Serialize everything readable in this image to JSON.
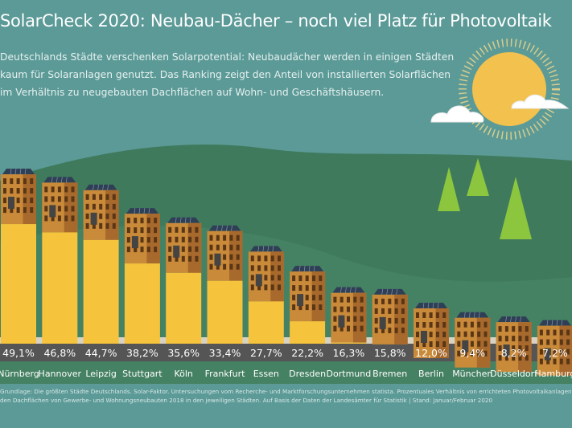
{
  "title": "SolarCheck 2020: Neubau-Dächer – noch viel Platz für Photovoltaik",
  "intro": [
    "Deutschlands Städte verschenken Solarpotential: Neubaudächer werden in einigen Städten",
    "kaum für Solaranlagen genutzt. Das Ranking zeigt den Anteil von installierten Solarflächen",
    "im Verhältnis zu neugebauten Dachflächen auf Wohn- und Geschäftshäusern."
  ],
  "footer": [
    "Grundlage: Die größten Städte Deutschlands. Solar-Faktor. Untersuchungen vom Recherche- und Marktforschungsunternehmen statista. Prozentuales Verhältnis von errichteten Photovoltaikanlagen zu",
    "den Dachflächen von Gewerbe- und Wohnungsneubauten 2018 in den jeweiligen Städten. Auf Basis der Daten der Landesämter für Statistik | Stand: Januar/Februar 2020"
  ],
  "colors": {
    "background": "#5b9a97",
    "hill": "#3f7a5c",
    "tree": "#8cc63f",
    "sun": "#f2c14e",
    "bar": "#f5c33c",
    "building": "#c98a3a",
    "building_side": "#a8692c",
    "label_band": "#555555",
    "baseline_band": "#d8d2c4"
  },
  "chart_data": {
    "type": "bar",
    "categories": [
      "Nürnberg",
      "Hannover",
      "Leipzig",
      "Stuttgart",
      "Köln",
      "Frankfurt",
      "Essen",
      "Dresden",
      "Dortmund",
      "Bremen",
      "Berlin",
      "München",
      "Düsseldorf",
      "Hamburg"
    ],
    "values": [
      49.1,
      46.8,
      44.7,
      38.2,
      35.6,
      33.4,
      27.7,
      22.2,
      16.3,
      15.8,
      12.0,
      9.4,
      8.2,
      7.2
    ],
    "value_labels": [
      "49,1%",
      "46,8%",
      "44,7%",
      "38,2%",
      "35,6%",
      "33,4%",
      "27,7%",
      "22,2%",
      "16,3%",
      "15,8%",
      "12,0%",
      "9,4%",
      "8,2%",
      "7,2%"
    ],
    "title": "",
    "xlabel": "",
    "ylabel": "",
    "ylim": [
      0,
      50
    ],
    "grid": false,
    "legend": "none"
  }
}
